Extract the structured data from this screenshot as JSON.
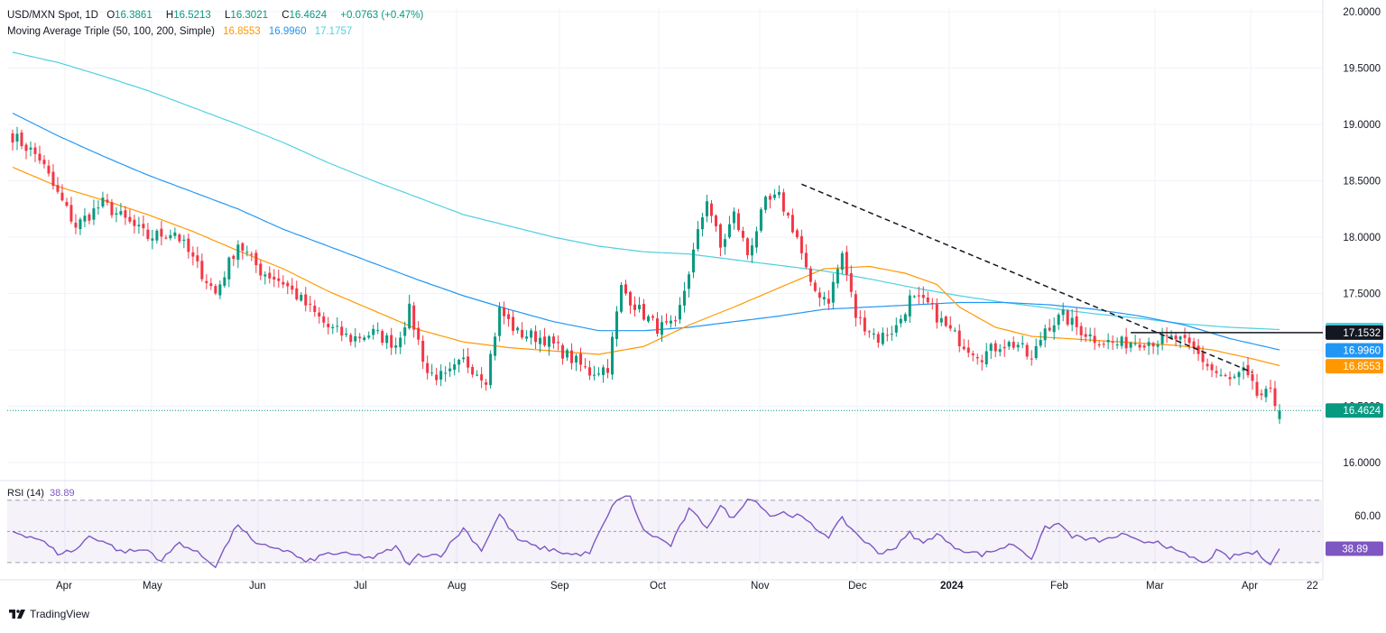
{
  "header": {
    "symbol": "USD/MXN Spot, 1D",
    "o_label": "O",
    "o": "16.3861",
    "h_label": "H",
    "h": "16.5213",
    "l_label": "L",
    "l": "16.3021",
    "c_label": "C",
    "c": "16.4624",
    "change": "+0.0763 (+0.47%)"
  },
  "ma_legend": {
    "label": "Moving Average Triple (50, 100, 200, Simple)",
    "v50": "16.8553",
    "v100": "16.9960",
    "v200": "17.1757"
  },
  "rsi_legend": {
    "label": "RSI (14)",
    "value": "38.89"
  },
  "brand": "TradingView",
  "colors": {
    "up": "#089981",
    "down": "#f23645",
    "ma50": "#ff9800",
    "ma100": "#2196f3",
    "ma200": "#4dd0e1",
    "rsi": "#7e57c2",
    "grid": "#f0f3fa"
  },
  "chart_data": [
    {
      "type": "candlestick",
      "price_axis": {
        "range": [
          15.84,
          20.04
        ],
        "ticks": [
          "20.0000",
          "19.5000",
          "19.0000",
          "18.5000",
          "18.0000",
          "17.5000",
          "17.0000",
          "16.5000",
          "16.0000"
        ]
      },
      "time_axis": {
        "labels": [
          "Apr",
          "May",
          "Jun",
          "Jul",
          "Aug",
          "Sep",
          "Oct",
          "Nov",
          "Dec",
          "2024",
          "Feb",
          "Mar",
          "Apr",
          "22"
        ]
      },
      "price_tags": [
        {
          "label": "17.1757",
          "value": 17.1757,
          "color": "#4dd0e1",
          "series": "ma200"
        },
        {
          "label": "17.1532",
          "value": 17.1532,
          "color": "#131722",
          "series": "hline"
        },
        {
          "label": "16.9960",
          "value": 16.996,
          "color": "#2196f3",
          "series": "ma100"
        },
        {
          "label": "16.8553",
          "value": 16.8553,
          "color": "#ff9800",
          "series": "ma50"
        },
        {
          "label": "16.4624",
          "value": 16.4624,
          "color": "#089981",
          "series": "last"
        }
      ],
      "anchors": [
        [
          0,
          18.9
        ],
        [
          6,
          18.7
        ],
        [
          9,
          18.45
        ],
        [
          14,
          18.1
        ],
        [
          20,
          18.3
        ],
        [
          25,
          18.15
        ],
        [
          30,
          18.0
        ],
        [
          36,
          18.05
        ],
        [
          40,
          17.8
        ],
        [
          45,
          17.5
        ],
        [
          50,
          17.95
        ],
        [
          55,
          17.7
        ],
        [
          60,
          17.6
        ],
        [
          65,
          17.4
        ],
        [
          70,
          17.2
        ],
        [
          75,
          17.1
        ],
        [
          80,
          17.15
        ],
        [
          85,
          17.05
        ],
        [
          88,
          17.35
        ],
        [
          92,
          16.8
        ],
        [
          96,
          16.75
        ],
        [
          100,
          16.9
        ],
        [
          105,
          16.75
        ],
        [
          108,
          17.35
        ],
        [
          112,
          17.15
        ],
        [
          118,
          17.1
        ],
        [
          123,
          16.95
        ],
        [
          128,
          16.8
        ],
        [
          132,
          16.85
        ],
        [
          135,
          17.55
        ],
        [
          139,
          17.35
        ],
        [
          143,
          17.2
        ],
        [
          147,
          17.2
        ],
        [
          150,
          17.7
        ],
        [
          154,
          18.35
        ],
        [
          157,
          17.9
        ],
        [
          160,
          18.2
        ],
        [
          163,
          17.85
        ],
        [
          167,
          18.3
        ],
        [
          170,
          18.35
        ],
        [
          174,
          18.0
        ],
        [
          177,
          17.55
        ],
        [
          181,
          17.45
        ],
        [
          184,
          17.85
        ],
        [
          187,
          17.3
        ],
        [
          192,
          17.1
        ],
        [
          196,
          17.2
        ],
        [
          199,
          17.45
        ],
        [
          203,
          17.4
        ],
        [
          207,
          17.2
        ],
        [
          211,
          17.05
        ],
        [
          215,
          16.95
        ],
        [
          219,
          17.05
        ],
        [
          223,
          17.05
        ],
        [
          226,
          16.9
        ],
        [
          229,
          17.2
        ],
        [
          233,
          17.3
        ],
        [
          236,
          17.2
        ],
        [
          240,
          17.1
        ],
        [
          245,
          17.05
        ],
        [
          249,
          17.08
        ],
        [
          254,
          17.08
        ],
        [
          258,
          17.1
        ],
        [
          262,
          17.0
        ],
        [
          266,
          16.82
        ],
        [
          270,
          16.72
        ],
        [
          273,
          16.8
        ],
        [
          276,
          16.6
        ],
        [
          279,
          16.6
        ],
        [
          281,
          16.44
        ]
      ],
      "ma50_points": [
        [
          0,
          18.62
        ],
        [
          10,
          18.45
        ],
        [
          20,
          18.33
        ],
        [
          30,
          18.2
        ],
        [
          40,
          18.05
        ],
        [
          50,
          17.88
        ],
        [
          60,
          17.72
        ],
        [
          70,
          17.52
        ],
        [
          80,
          17.35
        ],
        [
          90,
          17.18
        ],
        [
          100,
          17.07
        ],
        [
          110,
          17.02
        ],
        [
          120,
          16.99
        ],
        [
          130,
          16.96
        ],
        [
          140,
          17.03
        ],
        [
          150,
          17.22
        ],
        [
          160,
          17.38
        ],
        [
          170,
          17.55
        ],
        [
          180,
          17.72
        ],
        [
          190,
          17.74
        ],
        [
          198,
          17.68
        ],
        [
          205,
          17.58
        ],
        [
          210,
          17.38
        ],
        [
          218,
          17.2
        ],
        [
          226,
          17.12
        ],
        [
          234,
          17.1
        ],
        [
          242,
          17.08
        ],
        [
          250,
          17.06
        ],
        [
          258,
          17.04
        ],
        [
          266,
          17.0
        ],
        [
          274,
          16.93
        ],
        [
          281,
          16.86
        ]
      ],
      "ma100_points": [
        [
          0,
          19.1
        ],
        [
          10,
          18.9
        ],
        [
          20,
          18.72
        ],
        [
          30,
          18.55
        ],
        [
          40,
          18.4
        ],
        [
          50,
          18.25
        ],
        [
          60,
          18.07
        ],
        [
          70,
          17.92
        ],
        [
          80,
          17.77
        ],
        [
          90,
          17.62
        ],
        [
          100,
          17.48
        ],
        [
          110,
          17.36
        ],
        [
          120,
          17.25
        ],
        [
          130,
          17.17
        ],
        [
          140,
          17.17
        ],
        [
          150,
          17.2
        ],
        [
          160,
          17.25
        ],
        [
          170,
          17.3
        ],
        [
          180,
          17.36
        ],
        [
          190,
          17.38
        ],
        [
          200,
          17.4
        ],
        [
          210,
          17.42
        ],
        [
          220,
          17.42
        ],
        [
          230,
          17.4
        ],
        [
          240,
          17.36
        ],
        [
          250,
          17.3
        ],
        [
          260,
          17.22
        ],
        [
          270,
          17.1
        ],
        [
          281,
          17.0
        ]
      ],
      "ma200_points": [
        [
          0,
          19.64
        ],
        [
          10,
          19.55
        ],
        [
          20,
          19.43
        ],
        [
          30,
          19.3
        ],
        [
          40,
          19.15
        ],
        [
          50,
          19.0
        ],
        [
          60,
          18.84
        ],
        [
          70,
          18.66
        ],
        [
          80,
          18.5
        ],
        [
          90,
          18.35
        ],
        [
          100,
          18.2
        ],
        [
          110,
          18.1
        ],
        [
          120,
          18.0
        ],
        [
          130,
          17.92
        ],
        [
          140,
          17.87
        ],
        [
          150,
          17.85
        ],
        [
          160,
          17.8
        ],
        [
          170,
          17.75
        ],
        [
          180,
          17.7
        ],
        [
          190,
          17.63
        ],
        [
          200,
          17.55
        ],
        [
          210,
          17.48
        ],
        [
          220,
          17.42
        ],
        [
          230,
          17.37
        ],
        [
          240,
          17.32
        ],
        [
          250,
          17.28
        ],
        [
          260,
          17.23
        ],
        [
          270,
          17.2
        ],
        [
          281,
          17.18
        ]
      ],
      "trendline": {
        "from": [
          175,
          18.47
        ],
        "to": [
          275,
          16.8
        ]
      },
      "hline": {
        "from": [
          248,
          17.1532
        ],
        "to": [
          281,
          17.1532
        ]
      },
      "last_price": 16.4624
    },
    {
      "type": "line",
      "name": "RSI (14)",
      "range": [
        27,
        78
      ],
      "ticks": [
        "60.00"
      ],
      "bands": [
        30,
        50,
        70
      ],
      "last_value": 38.89,
      "last_label": "38.89",
      "anchors": [
        [
          0,
          50
        ],
        [
          6,
          45
        ],
        [
          10,
          36
        ],
        [
          14,
          38
        ],
        [
          17,
          47
        ],
        [
          20,
          44
        ],
        [
          24,
          37
        ],
        [
          30,
          38
        ],
        [
          33,
          31
        ],
        [
          37,
          43
        ],
        [
          41,
          36
        ],
        [
          45,
          28
        ],
        [
          50,
          55
        ],
        [
          54,
          41
        ],
        [
          58,
          40
        ],
        [
          62,
          36
        ],
        [
          65,
          30
        ],
        [
          70,
          36
        ],
        [
          75,
          35
        ],
        [
          80,
          33
        ],
        [
          85,
          40
        ],
        [
          88,
          28
        ],
        [
          90,
          35
        ],
        [
          95,
          35
        ],
        [
          100,
          52
        ],
        [
          104,
          38
        ],
        [
          108,
          61
        ],
        [
          112,
          45
        ],
        [
          116,
          40
        ],
        [
          120,
          38
        ],
        [
          124,
          35
        ],
        [
          128,
          36
        ],
        [
          131,
          54
        ],
        [
          134,
          71
        ],
        [
          137,
          72
        ],
        [
          140,
          50
        ],
        [
          143,
          46
        ],
        [
          146,
          41
        ],
        [
          150,
          64
        ],
        [
          154,
          53
        ],
        [
          157,
          66
        ],
        [
          160,
          58
        ],
        [
          163,
          72
        ],
        [
          166,
          67
        ],
        [
          168,
          60
        ],
        [
          171,
          62
        ],
        [
          175,
          59
        ],
        [
          178,
          52
        ],
        [
          181,
          47
        ],
        [
          184,
          58
        ],
        [
          187,
          49
        ],
        [
          192,
          36
        ],
        [
          196,
          40
        ],
        [
          199,
          49
        ],
        [
          202,
          42
        ],
        [
          205,
          49
        ],
        [
          208,
          41
        ],
        [
          211,
          38
        ],
        [
          215,
          35
        ],
        [
          219,
          39
        ],
        [
          222,
          42
        ],
        [
          226,
          33
        ],
        [
          229,
          52
        ],
        [
          232,
          55
        ],
        [
          235,
          47
        ],
        [
          238,
          45
        ],
        [
          242,
          44
        ],
        [
          246,
          48
        ],
        [
          250,
          43
        ],
        [
          254,
          44
        ],
        [
          258,
          37
        ],
        [
          262,
          33
        ],
        [
          264,
          29
        ],
        [
          267,
          37
        ],
        [
          270,
          33
        ],
        [
          273,
          36
        ],
        [
          276,
          36
        ],
        [
          279,
          30
        ],
        [
          281,
          38.89
        ]
      ]
    }
  ]
}
